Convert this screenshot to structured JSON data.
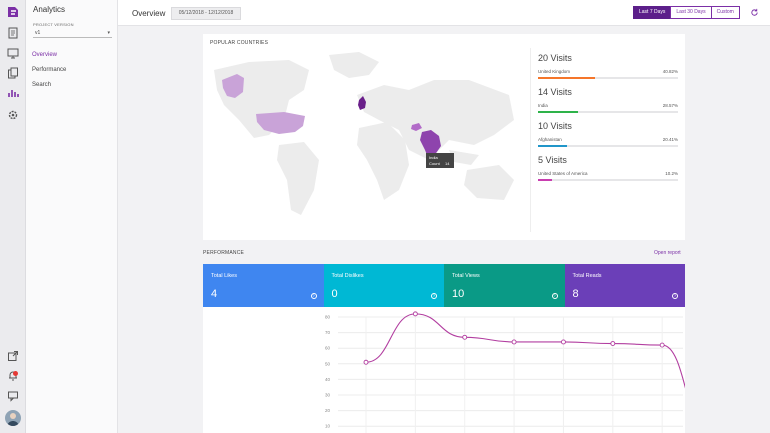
{
  "rail": {
    "icons": [
      "logo-icon",
      "document-icon",
      "monitor-icon",
      "pages-icon",
      "analytics-icon",
      "settings-icon",
      "export-icon",
      "notifications-icon",
      "feedback-icon",
      "avatar"
    ],
    "notification_badge": true
  },
  "nav": {
    "app_title": "Analytics",
    "project_label": "PROJECT VERSION",
    "project_value": "v1",
    "items": [
      {
        "label": "Overview",
        "active": true
      },
      {
        "label": "Performance",
        "active": false
      },
      {
        "label": "Search",
        "active": false
      }
    ]
  },
  "topbar": {
    "title": "Overview",
    "date_range": "05/12/2018 - 12/12/2018",
    "ranges": [
      {
        "label": "Last 7 Days",
        "active": true
      },
      {
        "label": "Last 30 Days",
        "active": false
      },
      {
        "label": "Custom",
        "active": false
      }
    ],
    "refresh_icon": "refresh-icon"
  },
  "countries": {
    "title": "POPULAR COUNTRIES",
    "tooltip": {
      "country": "India",
      "count_label": "Count",
      "count": "14"
    },
    "stats": [
      {
        "visits": "20 Visits",
        "country": "United Kingdom",
        "pct": "40.82%",
        "value": 40.82,
        "color": "#f5762a"
      },
      {
        "visits": "14 Visits",
        "country": "India",
        "pct": "28.57%",
        "value": 28.57,
        "color": "#2eb34a"
      },
      {
        "visits": "10 Visits",
        "country": "Afghanistan",
        "pct": "20.41%",
        "value": 20.41,
        "color": "#2196c9"
      },
      {
        "visits": "5 Visits",
        "country": "United States of America",
        "pct": "10.2%",
        "value": 10.2,
        "color": "#c93eb0"
      }
    ]
  },
  "performance": {
    "title": "PERFORMANCE",
    "open_report": "Open report",
    "tiles": [
      {
        "label": "Total Likes",
        "value": "4",
        "color": "#3f86f0"
      },
      {
        "label": "Total Dislikes",
        "value": "0",
        "color": "#00b8d4"
      },
      {
        "label": "Total Views",
        "value": "10",
        "color": "#0a9a86"
      },
      {
        "label": "Total Reads",
        "value": "8",
        "color": "#6b3fb8"
      }
    ]
  },
  "chart_data": {
    "type": "line",
    "y_ticks": [
      80,
      70,
      60,
      50,
      40,
      30,
      20,
      10
    ],
    "series": [
      {
        "values": [
          51,
          82,
          67,
          64,
          64,
          63,
          62,
          0
        ],
        "color": "#b23ea0"
      }
    ],
    "grid": true
  }
}
